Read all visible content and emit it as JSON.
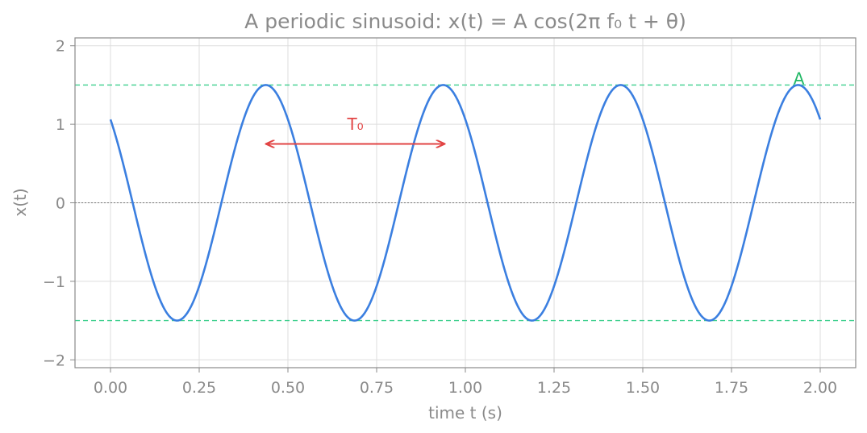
{
  "chart_data": {
    "type": "line",
    "title": "A periodic sinusoid: x(t) = A cos(2π f₀ t + θ)",
    "xlabel": "time t (s)",
    "ylabel": "x(t)",
    "xlim": [
      -0.1,
      2.1
    ],
    "ylim": [
      -2.1,
      2.1
    ],
    "x_ticks": [
      0.0,
      0.25,
      0.5,
      0.75,
      1.0,
      1.25,
      1.5,
      1.75,
      2.0
    ],
    "x_tick_labels": [
      "0.00",
      "0.25",
      "0.50",
      "0.75",
      "1.00",
      "1.25",
      "1.50",
      "1.75",
      "2.00"
    ],
    "y_ticks": [
      -2,
      -1,
      0,
      1,
      2
    ],
    "y_tick_labels": [
      "−2",
      "−1",
      "0",
      "1",
      "2"
    ],
    "grid": true,
    "series": [
      {
        "function": "A*cos(2*pi*f0*t + theta)",
        "A": 1.5,
        "f0": 2.0,
        "theta": 0.785,
        "t_range": [
          0,
          2
        ],
        "color": "#3b7fe0"
      }
    ],
    "reference_lines": [
      {
        "axis": "y",
        "value": 1.5,
        "style": "dashed",
        "color": "#3ecf8e"
      },
      {
        "axis": "y",
        "value": -1.5,
        "style": "dashed",
        "color": "#3ecf8e"
      },
      {
        "axis": "y",
        "value": 0,
        "style": "dotted",
        "color": "#777777"
      }
    ],
    "annotations": [
      {
        "text": "T₀",
        "type": "double-arrow",
        "from_x": 0.44,
        "to_x": 0.94,
        "y": 0.75,
        "label_x": 0.69,
        "label_y": 1.0,
        "color": "#e24444"
      },
      {
        "text": "A",
        "x": 1.94,
        "y": 1.58,
        "color": "#22b866"
      }
    ]
  }
}
